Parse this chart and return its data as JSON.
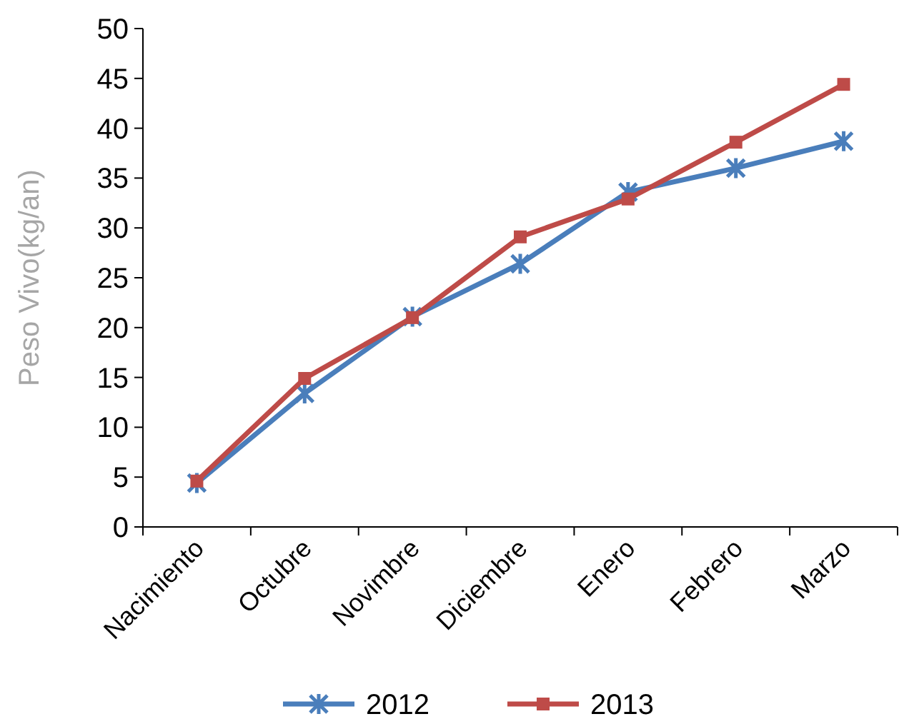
{
  "chart_data": {
    "type": "line",
    "ylabel": "Peso Vivo(kg/an)",
    "categories": [
      "Nacimiento",
      "Octubre",
      "Novimbre",
      "Diciembre",
      "Enero",
      "Febrero",
      "Marzo"
    ],
    "series": [
      {
        "name": "2012",
        "color": "#4a7ebb",
        "marker": "cross",
        "values": [
          4.4,
          13.4,
          21.1,
          26.4,
          33.6,
          36,
          38.7
        ]
      },
      {
        "name": "2013",
        "color": "#be4b48",
        "marker": "square",
        "values": [
          4.6,
          14.9,
          21,
          29.1,
          32.9,
          38.6,
          44.4
        ]
      }
    ],
    "ylim": [
      0,
      50
    ],
    "yticks": [
      0,
      5,
      10,
      15,
      20,
      25,
      30,
      35,
      40,
      45,
      50
    ],
    "legend": "bottom",
    "grid": false
  }
}
